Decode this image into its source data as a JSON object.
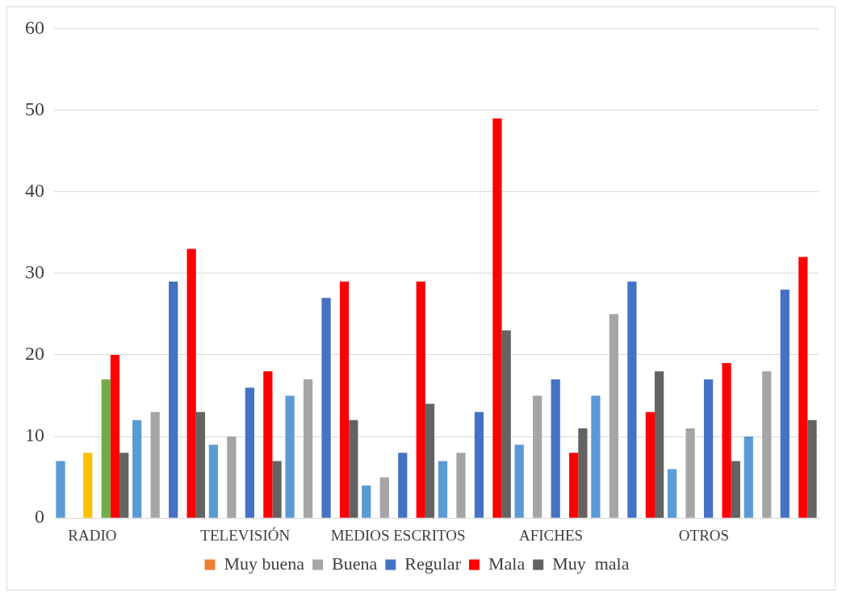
{
  "chart_data": {
    "type": "bar",
    "categories": [
      "RADIO",
      null,
      "TELEVISIÓN",
      null,
      "MEDIOS ESCRITOS",
      null,
      "AFICHES",
      null,
      "OTROS",
      null
    ],
    "series": [
      {
        "color": "#5b9bd5",
        "values": [
          7,
          12,
          9,
          15,
          4,
          7,
          9,
          15,
          6,
          10
        ]
      },
      {
        "name": "Muy buena",
        "color": "#ed7d31",
        "values": [
          null,
          null,
          null,
          null,
          null,
          null,
          null,
          null,
          null,
          null
        ]
      },
      {
        "name": "Buena",
        "color": "#a5a5a5",
        "values": [
          null,
          13,
          10,
          17,
          5,
          8,
          15,
          25,
          11,
          18
        ]
      },
      {
        "color": "#ffc000",
        "values": [
          8,
          null,
          null,
          null,
          null,
          null,
          null,
          null,
          null,
          null
        ]
      },
      {
        "name": "Regular",
        "color": "#4472c4",
        "values": [
          null,
          29,
          16,
          27,
          8,
          13,
          17,
          29,
          17,
          28
        ]
      },
      {
        "color": "#70ad47",
        "values": [
          17,
          null,
          null,
          null,
          null,
          null,
          null,
          null,
          null,
          null
        ]
      },
      {
        "name": "Mala",
        "color": "#ff0000",
        "values": [
          20,
          33,
          18,
          29,
          29,
          49,
          8,
          13,
          19,
          32
        ]
      },
      {
        "name": "Muy  mala",
        "color": "#636363",
        "values": [
          8,
          13,
          7,
          12,
          14,
          23,
          11,
          18,
          7,
          12
        ]
      }
    ],
    "ylim": [
      0,
      60
    ],
    "yticks": [
      0,
      10,
      20,
      30,
      40,
      50,
      60
    ],
    "grid": "y",
    "legend": "bottom"
  }
}
